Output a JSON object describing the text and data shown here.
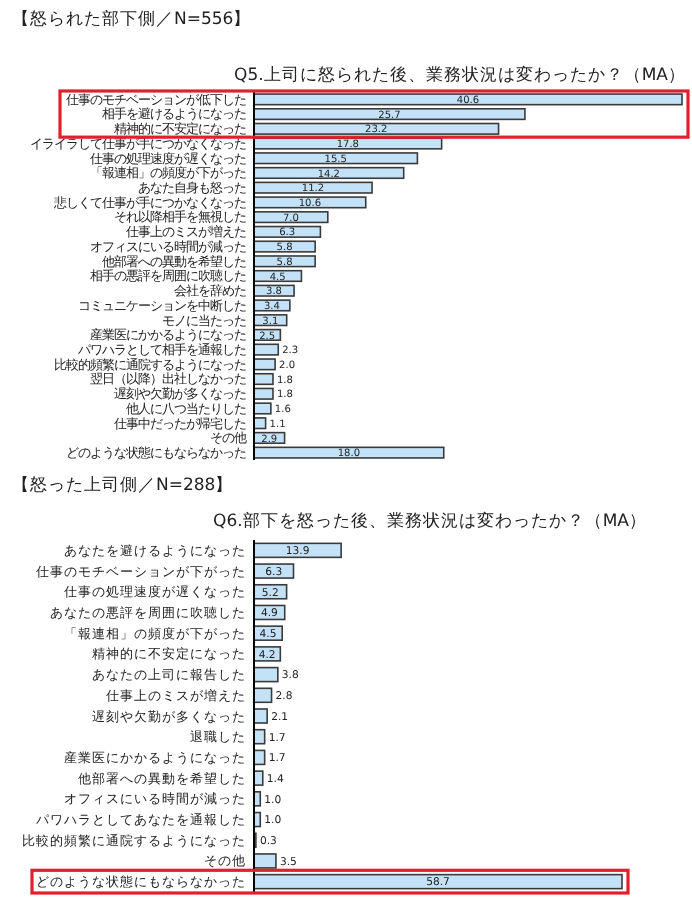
{
  "chart_data": [
    {
      "type": "bar",
      "orientation": "horizontal",
      "subtitle": "【怒られた部下側／N=556】",
      "title": "Q5.上司に怒られた後、業務状況は変わったか？（MA）",
      "color": "#c4e2f7",
      "categories": [
        "仕事のモチベーションが低下した",
        "相手を避けるようになった",
        "精神的に不安定になった",
        "イライラして仕事が手につかなくなった",
        "仕事の処理速度が遅くなった",
        "「報連相」の頻度が下がった",
        "あなた自身も怒った",
        "悲しくて仕事が手につかなくなった",
        "それ以降相手を無視した",
        "仕事上のミスが増えた",
        "オフィスにいる時間が減った",
        "他部署への異動を希望した",
        "相手の悪評を周囲に吹聴した",
        "会社を辞めた",
        "コミュニケーションを中断した",
        "モノに当たった",
        "産業医にかかるようになった",
        "パワハラとして相手を通報した",
        "比較的頻繁に通院するようになった",
        "翌日（以降）出社しなかった",
        "遅刻や欠勤が多くなった",
        "他人に八つ当たりした",
        "仕事中だったが帰宅した",
        "その他",
        "どのような状態にもならなかった"
      ],
      "values": [
        40.6,
        25.7,
        23.2,
        17.8,
        15.5,
        14.2,
        11.2,
        10.6,
        7.0,
        6.3,
        5.8,
        5.8,
        4.5,
        3.8,
        3.4,
        3.1,
        2.5,
        2.3,
        2.0,
        1.8,
        1.8,
        1.6,
        1.1,
        2.9,
        18.0
      ],
      "value_labels": [
        "40.6",
        "25.7",
        "23.2",
        "17.8",
        "15.5",
        "14.2",
        "11.2",
        "10.6",
        "7.0",
        "6.3",
        "5.8",
        "5.8",
        "4.5",
        "3.8",
        "3.4",
        "3.1",
        "2.5",
        "2.3",
        "2.0",
        "1.8",
        "1.8",
        "1.6",
        "1.1",
        "2.9",
        "18.0"
      ]
    },
    {
      "type": "bar",
      "orientation": "horizontal",
      "subtitle": "【怒った上司側／N=288】",
      "title": "Q6.部下を怒った後、業務状況は変わったか？（MA）",
      "color": "#c4e2f7",
      "categories": [
        "あなたを避けるようになった",
        "仕事のモチベーションが下がった",
        "仕事の処理速度が遅くなった",
        "あなたの悪評を周囲に吹聴した",
        "「報連相」の頻度が下がった",
        "精神的に不安定になった",
        "あなたの上司に報告した",
        "仕事上のミスが増えた",
        "遅刻や欠勤が多くなった",
        "退職した",
        "産業医にかかるようになった",
        "他部署への異動を希望した",
        "オフィスにいる時間が減った",
        "パワハラとしてあなたを通報した",
        "比較的頻繁に通院するようになった",
        "その他",
        "どのような状態にもならなかった"
      ],
      "values": [
        13.9,
        6.3,
        5.2,
        4.9,
        4.5,
        4.2,
        3.8,
        2.8,
        2.1,
        1.7,
        1.7,
        1.4,
        1.0,
        1.0,
        0.3,
        3.5,
        58.7
      ],
      "value_labels": [
        "13.9",
        "6.3",
        "5.2",
        "4.9",
        "4.5",
        "4.2",
        "3.8",
        "2.8",
        "2.1",
        "1.7",
        "1.7",
        "1.4",
        "1.0",
        "1.0",
        "0.3",
        "3.5",
        "58.7"
      ]
    }
  ]
}
